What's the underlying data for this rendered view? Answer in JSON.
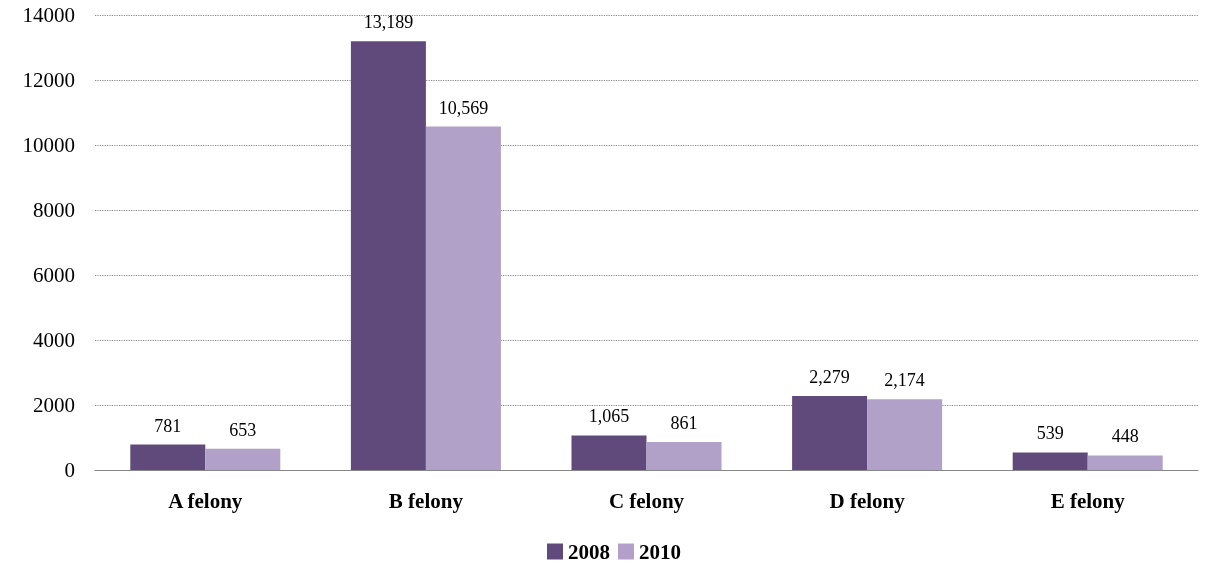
{
  "chart_data": {
    "type": "bar",
    "categories": [
      "A felony",
      "B felony",
      "C felony",
      "D felony",
      "E felony"
    ],
    "series": [
      {
        "name": "2008",
        "color": "#5f4a7b",
        "values": [
          781,
          13189,
          1065,
          2279,
          539
        ],
        "value_labels": [
          "781",
          "13,189",
          "1,065",
          "2,279",
          "539"
        ]
      },
      {
        "name": "2010",
        "color": "#b1a0c7",
        "values": [
          653,
          10569,
          861,
          2174,
          448
        ],
        "value_labels": [
          "653",
          "10,569",
          "861",
          "2,174",
          "448"
        ]
      }
    ],
    "ylim": [
      0,
      14000
    ],
    "yticks": [
      0,
      2000,
      4000,
      6000,
      8000,
      10000,
      12000,
      14000
    ],
    "grid": "y",
    "legend": "bottom"
  }
}
